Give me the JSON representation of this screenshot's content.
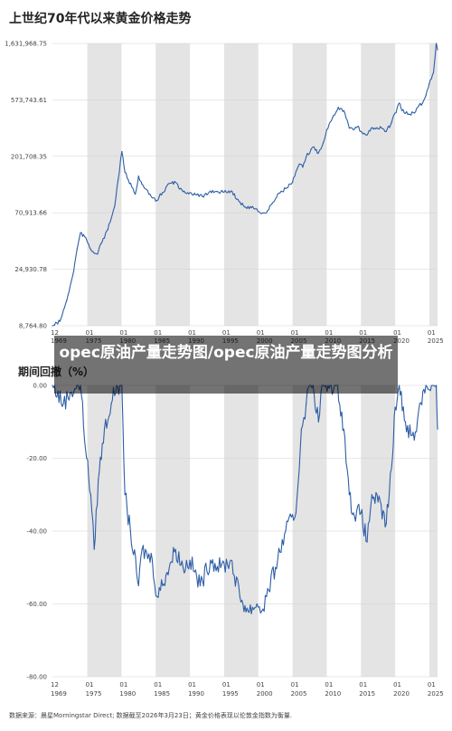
{
  "title": "上世纪70年代以来黄金价格走势",
  "subtitle": "期间回撤（%）",
  "overlay_text": "opec原油产量走势图/opec原油产量走势图分析",
  "footer": "数据来源：晨星Morningstar Direct; 数据截至2026年3月23日；黄金价格表现以伦敦金指数为衡量.",
  "colors": {
    "line": "#2e5ea6",
    "band": "#e4e4e4",
    "grid": "#d0d0d0"
  },
  "chart_data": [
    {
      "type": "line",
      "title": "上世纪70年代以来黄金价格走势",
      "y_scale": "log",
      "y_ticks": [
        "1,631,968.75",
        "573,743.61",
        "201,708.35",
        "70,913.66",
        "24,930.78",
        "8,764.80"
      ],
      "x_ticks": [
        {
          "top": "12",
          "bottom": "1969"
        },
        {
          "top": "01",
          "bottom": "1975"
        },
        {
          "top": "01",
          "bottom": "1980"
        },
        {
          "top": "01",
          "bottom": "1985"
        },
        {
          "top": "01",
          "bottom": "1990"
        },
        {
          "top": "01",
          "bottom": "1995"
        },
        {
          "top": "01",
          "bottom": "2000"
        },
        {
          "top": "01",
          "bottom": "2005"
        },
        {
          "top": "01",
          "bottom": "2010"
        },
        {
          "top": "01",
          "bottom": "2015"
        },
        {
          "top": "01",
          "bottom": "2020"
        },
        {
          "top": "01",
          "bottom": "2025"
        }
      ],
      "x": [
        1969.9,
        1971,
        1972,
        1973,
        1973.5,
        1974,
        1974.9,
        1975.5,
        1976.5,
        1977,
        1978,
        1979,
        1979.5,
        1980.05,
        1980.5,
        1981,
        1982,
        1982.5,
        1983,
        1984,
        1985,
        1985.5,
        1986,
        1987,
        1987.9,
        1988.5,
        1989,
        1990,
        1991,
        1992,
        1993,
        1994,
        1995,
        1996,
        1997,
        1998,
        1999,
        1999.8,
        2000.5,
        2001.2,
        2002,
        2003,
        2004,
        2005,
        2006,
        2006.5,
        2007,
        2008,
        2008.8,
        2009.5,
        2010,
        2011,
        2011.7,
        2012.5,
        2013.3,
        2013.9,
        2014.5,
        2015,
        2015.9,
        2016.5,
        2017,
        2018,
        2018.7,
        2019.5,
        2020.6,
        2021,
        2022,
        2022.8,
        2023.5,
        2024,
        2024.5,
        2025,
        2025.6,
        2026.0,
        2026.2
      ],
      "values": [
        8765,
        9500,
        14000,
        24000,
        36000,
        49000,
        43000,
        36000,
        33000,
        40000,
        52000,
        80000,
        130000,
        220000,
        150000,
        130000,
        100000,
        140000,
        120000,
        100000,
        88000,
        95000,
        103000,
        122000,
        125000,
        110000,
        105000,
        103000,
        99000,
        95000,
        106000,
        105000,
        104000,
        106000,
        91000,
        79000,
        78000,
        76000,
        70000,
        71000,
        84000,
        102000,
        111000,
        125000,
        175000,
        165000,
        200000,
        240000,
        215000,
        260000,
        330000,
        430000,
        500000,
        470000,
        340000,
        330000,
        350000,
        320000,
        300000,
        340000,
        340000,
        340000,
        320000,
        380000,
        540000,
        470000,
        440000,
        450000,
        520000,
        540000,
        620000,
        780000,
        950000,
        1631968,
        1450000
      ],
      "ylim": [
        8764.8,
        1631968.75
      ]
    },
    {
      "type": "area",
      "title": "期间回撤（%）",
      "y_ticks": [
        "0.00",
        "-20.00",
        "-40.00",
        "-60.00",
        "-80.00"
      ],
      "x_ticks": [
        {
          "top": "12",
          "bottom": "1969"
        },
        {
          "top": "01",
          "bottom": "1975"
        },
        {
          "top": "01",
          "bottom": "1980"
        },
        {
          "top": "01",
          "bottom": "1985"
        },
        {
          "top": "01",
          "bottom": "1990"
        },
        {
          "top": "01",
          "bottom": "1995"
        },
        {
          "top": "01",
          "bottom": "2000"
        },
        {
          "top": "01",
          "bottom": "2005"
        },
        {
          "top": "01",
          "bottom": "2010"
        },
        {
          "top": "01",
          "bottom": "2015"
        },
        {
          "top": "01",
          "bottom": "2020"
        },
        {
          "top": "01",
          "bottom": "2025"
        }
      ],
      "x": [
        1969.9,
        1971.5,
        1972.5,
        1973.5,
        1974,
        1974.9,
        1975.5,
        1976.0,
        1976.6,
        1977.5,
        1978.5,
        1979.3,
        1980.05,
        1980.5,
        1981.3,
        1982.5,
        1983.0,
        1984.5,
        1985.2,
        1986.5,
        1987.9,
        1989,
        1990,
        1991.5,
        1993,
        1994.5,
        1996,
        1997.3,
        1998.5,
        1999.8,
        2000.5,
        2001.2,
        2002.5,
        2004,
        2005.5,
        2006.3,
        2007,
        2007.5,
        2008.0,
        2008.8,
        2009.3,
        2010.5,
        2011.6,
        2012.5,
        2013.3,
        2013.9,
        2015.0,
        2015.9,
        2016.6,
        2017.5,
        2018.7,
        2019.6,
        2020.0,
        2020.6,
        2021.5,
        2022.8,
        2023.6,
        2024.5,
        2025.5,
        2026.0,
        2026.2
      ],
      "values": [
        0,
        -5,
        -2,
        0,
        0,
        -20,
        -30,
        -45,
        -26,
        -12,
        -5,
        0,
        0,
        -30,
        -40,
        -55,
        -45,
        -48,
        -58,
        -52,
        -45,
        -50,
        -48,
        -55,
        -48,
        -50,
        -48,
        -58,
        -62,
        -60,
        -62,
        -58,
        -50,
        -40,
        -35,
        -12,
        -5,
        0,
        0,
        -10,
        0,
        0,
        0,
        -12,
        -30,
        -35,
        -35,
        -43,
        -30,
        -32,
        -38,
        -20,
        -6,
        0,
        -10,
        -15,
        -5,
        0,
        0,
        0,
        -12
      ],
      "ylim": [
        -80,
        0
      ]
    }
  ]
}
